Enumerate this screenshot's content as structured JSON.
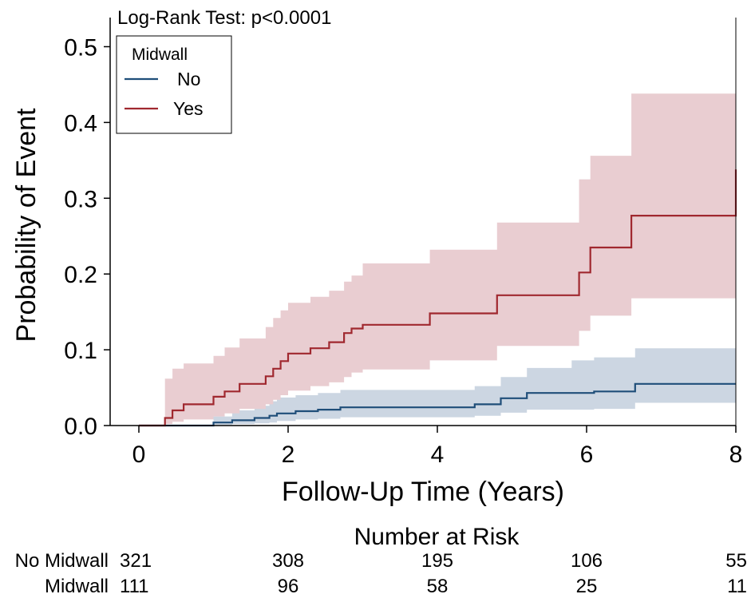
{
  "annotation": "Log-Rank Test: p<0.0001",
  "chart_data": {
    "type": "line",
    "step": true,
    "xlabel": "Follow-Up Time (Years)",
    "ylabel": "Probability of Event",
    "xlim": [
      0,
      8
    ],
    "ylim": [
      0,
      0.53
    ],
    "xticks": [
      "0",
      "2",
      "4",
      "6",
      "8"
    ],
    "yticks": [
      "0.0",
      "0.1",
      "0.2",
      "0.3",
      "0.4",
      "0.5"
    ],
    "grid": false,
    "legend": {
      "title": "Midwall",
      "position": "top-left"
    },
    "series": [
      {
        "name": "No",
        "color": "#1f4e79",
        "band_color": "#ccd6e2",
        "x": [
          0,
          1.0,
          1.25,
          1.55,
          1.75,
          1.85,
          2.1,
          2.4,
          2.7,
          3.3,
          4.0,
          4.5,
          4.85,
          5.2,
          5.8,
          6.1,
          6.65,
          8.0
        ],
        "y": [
          0,
          0.004,
          0.007,
          0.01,
          0.013,
          0.016,
          0.019,
          0.021,
          0.024,
          0.024,
          0.024,
          0.028,
          0.036,
          0.043,
          0.043,
          0.045,
          0.055,
          0.055
        ],
        "lower": [
          0,
          0.001,
          0.002,
          0.003,
          0.004,
          0.006,
          0.008,
          0.009,
          0.011,
          0.011,
          0.011,
          0.013,
          0.017,
          0.021,
          0.021,
          0.022,
          0.03,
          0.03
        ],
        "upper": [
          0,
          0.012,
          0.02,
          0.026,
          0.032,
          0.037,
          0.04,
          0.043,
          0.047,
          0.047,
          0.047,
          0.052,
          0.064,
          0.076,
          0.086,
          0.09,
          0.102,
          0.102
        ]
      },
      {
        "name": "Yes",
        "color": "#a0282f",
        "band_color": "#e9cdd1",
        "x": [
          0,
          0.35,
          0.45,
          0.6,
          1.0,
          1.15,
          1.35,
          1.7,
          1.8,
          1.9,
          2.0,
          2.3,
          2.55,
          2.75,
          2.85,
          3.0,
          3.9,
          4.8,
          5.9,
          6.05,
          6.6,
          8.0
        ],
        "y": [
          0,
          0.01,
          0.02,
          0.028,
          0.038,
          0.045,
          0.055,
          0.065,
          0.075,
          0.085,
          0.095,
          0.102,
          0.11,
          0.122,
          0.128,
          0.133,
          0.148,
          0.172,
          0.202,
          0.235,
          0.277,
          0.338
        ],
        "lower": [
          0,
          0.002,
          0.005,
          0.008,
          0.012,
          0.016,
          0.022,
          0.028,
          0.034,
          0.04,
          0.046,
          0.052,
          0.057,
          0.064,
          0.07,
          0.074,
          0.086,
          0.105,
          0.125,
          0.145,
          0.168,
          0.168
        ],
        "upper": [
          0,
          0.062,
          0.075,
          0.082,
          0.092,
          0.103,
          0.115,
          0.13,
          0.142,
          0.152,
          0.162,
          0.17,
          0.178,
          0.19,
          0.198,
          0.214,
          0.232,
          0.268,
          0.325,
          0.356,
          0.438,
          0.438
        ]
      }
    ]
  },
  "risk_table": {
    "title": "Number at Risk",
    "times": [
      0,
      2,
      4,
      6,
      8
    ],
    "rows": [
      {
        "label": "No Midwall",
        "values": [
          "321",
          "308",
          "195",
          "106",
          "55"
        ]
      },
      {
        "label": "Midwall",
        "values": [
          "111",
          "96",
          "58",
          "25",
          "11"
        ]
      }
    ]
  }
}
